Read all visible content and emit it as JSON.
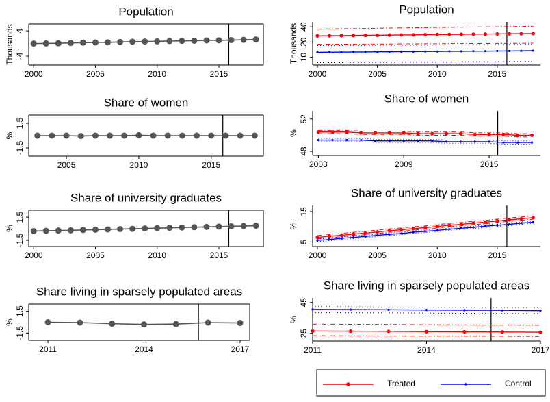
{
  "chart_data": [
    {
      "type": "line",
      "title": "Population",
      "ylabel": "Thousands",
      "x": [
        2000,
        2001,
        2002,
        2003,
        2004,
        2005,
        2006,
        2007,
        2008,
        2009,
        2010,
        2011,
        2012,
        2013,
        2014,
        2015,
        2016,
        2017,
        2018
      ],
      "xlim": [
        1999.6,
        2018.6
      ],
      "xticks": [
        2000,
        2005,
        2010,
        2015
      ],
      "ylim": [
        -6.8,
        6.2
      ],
      "yticks": [
        -4,
        4
      ],
      "vline": 2015.8,
      "series": [
        {
          "color": "#555555",
          "values": [
            0,
            0.05,
            0.1,
            0.2,
            0.3,
            0.35,
            0.4,
            0.5,
            0.6,
            0.65,
            0.7,
            0.8,
            0.85,
            0.9,
            1.0,
            1.05,
            1.1,
            1.2,
            1.3
          ]
        }
      ]
    },
    {
      "type": "line",
      "title": "Population",
      "ylabel": "Thousands",
      "log_y": true,
      "x": [
        2000,
        2001,
        2002,
        2003,
        2004,
        2005,
        2006,
        2007,
        2008,
        2009,
        2010,
        2011,
        2012,
        2013,
        2014,
        2015,
        2016,
        2017,
        2018
      ],
      "xlim": [
        1999.6,
        2018.6
      ],
      "xticks": [
        2000,
        2005,
        2010,
        2015
      ],
      "ylim": [
        7,
        50
      ],
      "yticks": [
        10,
        20,
        40
      ],
      "vline": 2015.8,
      "series": [
        {
          "name": "Treated",
          "color": "#ff0000",
          "ci_style": "dashdot",
          "values": [
            26.5,
            26.7,
            26.8,
            27.0,
            27.2,
            27.3,
            27.5,
            27.7,
            27.8,
            28.0,
            28.2,
            28.3,
            28.5,
            28.7,
            28.8,
            29.0,
            29.2,
            29.3,
            29.5
          ],
          "lower": [
            18.0,
            18.1,
            18.1,
            18.2,
            18.2,
            18.3,
            18.3,
            18.4,
            18.4,
            18.5,
            18.5,
            18.6,
            18.6,
            18.7,
            18.7,
            18.8,
            18.8,
            18.9,
            19.0
          ],
          "upper": [
            36.0,
            36.3,
            36.6,
            36.8,
            37.1,
            37.4,
            37.7,
            37.9,
            38.2,
            38.5,
            38.8,
            39.0,
            39.3,
            39.6,
            39.9,
            40.1,
            40.4,
            40.7,
            41.0
          ]
        },
        {
          "name": "Control",
          "color": "#0000ff",
          "ci_style": "dotted",
          "values": [
            12.5,
            12.6,
            12.6,
            12.7,
            12.7,
            12.8,
            12.8,
            12.9,
            12.9,
            13.0,
            13.0,
            13.1,
            13.1,
            13.2,
            13.2,
            13.3,
            13.3,
            13.4,
            13.5
          ],
          "lower": [
            7.8,
            7.8,
            7.8,
            7.9,
            7.9,
            7.9,
            7.9,
            8.0,
            8.0,
            8.0,
            8.0,
            8.0,
            8.1,
            8.1,
            8.1,
            8.1,
            8.2,
            8.2,
            8.2
          ],
          "upper": [
            17.0,
            17.1,
            17.1,
            17.2,
            17.2,
            17.3,
            17.3,
            17.4,
            17.4,
            17.5,
            17.5,
            17.6,
            17.6,
            17.7,
            17.7,
            17.8,
            17.8,
            17.9,
            18.0
          ]
        }
      ]
    },
    {
      "type": "line",
      "title": "Share of women",
      "ylabel": "%",
      "x": [
        2003,
        2004,
        2005,
        2006,
        2007,
        2008,
        2009,
        2010,
        2011,
        2012,
        2013,
        2014,
        2015,
        2016,
        2017,
        2018
      ],
      "xlim": [
        2002.4,
        2018.6
      ],
      "xticks": [
        2005,
        2010,
        2015
      ],
      "ylim": [
        -2.5,
        2.5
      ],
      "yticks": [
        -1.5,
        1.5
      ],
      "vline": 2015.8,
      "series": [
        {
          "color": "#555555",
          "values": [
            0,
            0,
            0,
            -0.05,
            0,
            0,
            0,
            0.05,
            0,
            0,
            0,
            0,
            0,
            0,
            0,
            0
          ]
        }
      ]
    },
    {
      "type": "line",
      "title": "Share of women",
      "ylabel": "%",
      "x": [
        2003,
        2004,
        2005,
        2006,
        2007,
        2008,
        2009,
        2010,
        2011,
        2012,
        2013,
        2014,
        2015,
        2016,
        2017,
        2018
      ],
      "xlim": [
        2002.6,
        2018.6
      ],
      "xticks": [
        2003,
        2009,
        2015
      ],
      "ylim": [
        47.5,
        53
      ],
      "yticks": [
        48,
        52
      ],
      "vline": 2015.6,
      "series": [
        {
          "name": "Treated",
          "color": "#ff0000",
          "ci_style": "dashdot",
          "values": [
            50.4,
            50.4,
            50.4,
            50.3,
            50.3,
            50.3,
            50.3,
            50.2,
            50.2,
            50.2,
            50.2,
            50.1,
            50.1,
            50.1,
            50.0,
            50.0
          ],
          "lower": [
            50.2,
            50.2,
            50.2,
            50.1,
            50.1,
            50.1,
            50.1,
            50.0,
            50.0,
            50.0,
            50.0,
            49.9,
            49.9,
            49.9,
            49.8,
            49.8
          ],
          "upper": [
            50.6,
            50.6,
            50.6,
            50.5,
            50.5,
            50.5,
            50.5,
            50.4,
            50.4,
            50.4,
            50.4,
            50.3,
            50.3,
            50.3,
            50.2,
            50.2
          ]
        },
        {
          "name": "Control",
          "color": "#0000ff",
          "ci_style": "dotted",
          "values": [
            49.4,
            49.4,
            49.4,
            49.4,
            49.3,
            49.3,
            49.3,
            49.3,
            49.3,
            49.2,
            49.2,
            49.2,
            49.2,
            49.1,
            49.1,
            49.1
          ],
          "lower": [
            49.2,
            49.2,
            49.2,
            49.2,
            49.1,
            49.1,
            49.1,
            49.1,
            49.1,
            49.0,
            49.0,
            49.0,
            49.0,
            48.9,
            48.9,
            48.9
          ],
          "upper": [
            49.6,
            49.6,
            49.6,
            49.6,
            49.5,
            49.5,
            49.5,
            49.5,
            49.5,
            49.4,
            49.4,
            49.4,
            49.4,
            49.3,
            49.3,
            49.3
          ]
        }
      ]
    },
    {
      "type": "line",
      "title": "Share of university graduates",
      "ylabel": "%",
      "x": [
        2000,
        2001,
        2002,
        2003,
        2004,
        2005,
        2006,
        2007,
        2008,
        2009,
        2010,
        2011,
        2012,
        2013,
        2014,
        2015,
        2016,
        2017,
        2018
      ],
      "xlim": [
        1999.6,
        2018.6
      ],
      "xticks": [
        2000,
        2005,
        2010,
        2015
      ],
      "ylim": [
        -2.3,
        2.4
      ],
      "yticks": [
        -1.5,
        1.5
      ],
      "vline": 2015.8,
      "series": [
        {
          "color": "#555555",
          "values": [
            -0.3,
            -0.27,
            -0.23,
            -0.2,
            -0.16,
            -0.12,
            -0.08,
            -0.04,
            0,
            0.04,
            0.08,
            0.12,
            0.16,
            0.2,
            0.24,
            0.28,
            0.32,
            0.36,
            0.4
          ]
        }
      ]
    },
    {
      "type": "line",
      "title": "Share of university graduates",
      "ylabel": "%",
      "x": [
        2000,
        2001,
        2002,
        2003,
        2004,
        2005,
        2006,
        2007,
        2008,
        2009,
        2010,
        2011,
        2012,
        2013,
        2014,
        2015,
        2016,
        2017,
        2018
      ],
      "xlim": [
        1999.6,
        2018.6
      ],
      "xticks": [
        2000,
        2005,
        2010,
        2015
      ],
      "ylim": [
        3.5,
        17
      ],
      "yticks": [
        5,
        15
      ],
      "vline": 2015.8,
      "series": [
        {
          "name": "Treated",
          "color": "#ff0000",
          "ci_style": "dashdot",
          "values": [
            6.5,
            6.9,
            7.2,
            7.6,
            7.9,
            8.3,
            8.7,
            9.0,
            9.4,
            9.7,
            10.1,
            10.5,
            10.8,
            11.2,
            11.5,
            11.9,
            12.3,
            12.6,
            13.0
          ],
          "lower": [
            6.0,
            6.4,
            6.7,
            7.1,
            7.4,
            7.8,
            8.2,
            8.5,
            8.9,
            9.2,
            9.6,
            10.0,
            10.3,
            10.7,
            11.0,
            11.4,
            11.8,
            12.1,
            12.5
          ],
          "upper": [
            7.1,
            7.5,
            7.8,
            8.2,
            8.5,
            8.9,
            9.3,
            9.6,
            10.0,
            10.3,
            10.7,
            11.1,
            11.4,
            11.8,
            12.1,
            12.5,
            12.9,
            13.2,
            13.6
          ]
        },
        {
          "name": "Control",
          "color": "#0000ff",
          "ci_style": "dotted",
          "values": [
            5.5,
            5.8,
            6.2,
            6.5,
            6.8,
            7.2,
            7.5,
            7.8,
            8.2,
            8.5,
            8.8,
            9.2,
            9.5,
            9.8,
            10.2,
            10.5,
            10.8,
            11.2,
            11.5
          ],
          "lower": [
            5.1,
            5.4,
            5.8,
            6.1,
            6.4,
            6.8,
            7.1,
            7.4,
            7.8,
            8.1,
            8.4,
            8.8,
            9.1,
            9.4,
            9.8,
            10.1,
            10.4,
            10.8,
            11.1
          ],
          "upper": [
            5.9,
            6.2,
            6.6,
            6.9,
            7.2,
            7.6,
            7.9,
            8.2,
            8.6,
            8.9,
            9.2,
            9.6,
            9.9,
            10.2,
            10.6,
            10.9,
            11.2,
            11.6,
            11.9
          ]
        }
      ]
    },
    {
      "type": "line",
      "title": "Share living in sparsely populated areas",
      "ylabel": "%",
      "x": [
        2011,
        2012,
        2013,
        2014,
        2015,
        2016,
        2017
      ],
      "xlim": [
        2010.4,
        2017.3
      ],
      "xticks": [
        2011,
        2014,
        2017
      ],
      "ylim": [
        -2.5,
        2.5
      ],
      "yticks": [
        -1.5,
        1.5
      ],
      "vline": 2015.7,
      "series": [
        {
          "color": "#555555",
          "values": [
            0,
            -0.05,
            -0.2,
            -0.3,
            -0.25,
            -0.05,
            -0.1
          ]
        }
      ]
    },
    {
      "type": "line",
      "title": "Share living in sparsely populated areas",
      "ylabel": "%",
      "x": [
        2011,
        2012,
        2013,
        2014,
        2015,
        2016,
        2017
      ],
      "xlim": [
        2011,
        2017
      ],
      "xticks": [
        2011,
        2014,
        2017
      ],
      "ylim": [
        20,
        48
      ],
      "yticks": [
        25,
        45
      ],
      "vline": 2015.7,
      "series": [
        {
          "name": "Treated",
          "color": "#ff0000",
          "ci_style": "dashdot",
          "values": [
            26.5,
            26.4,
            26.3,
            26.1,
            26.0,
            25.9,
            25.7
          ],
          "lower": [
            23.5,
            23.4,
            23.3,
            23.2,
            23.2,
            23.1,
            23.0
          ],
          "upper": [
            31.0,
            30.9,
            30.8,
            30.6,
            30.5,
            30.4,
            30.3
          ]
        },
        {
          "name": "Control",
          "color": "#0000ff",
          "ci_style": "dotted",
          "values": [
            40.5,
            40.4,
            40.3,
            40.1,
            40.0,
            39.9,
            39.7
          ],
          "lower": [
            38.5,
            38.4,
            38.3,
            38.1,
            38.0,
            37.9,
            37.8
          ],
          "upper": [
            42.3,
            42.2,
            42.1,
            42.0,
            41.9,
            41.8,
            41.7
          ]
        }
      ]
    }
  ]
}
